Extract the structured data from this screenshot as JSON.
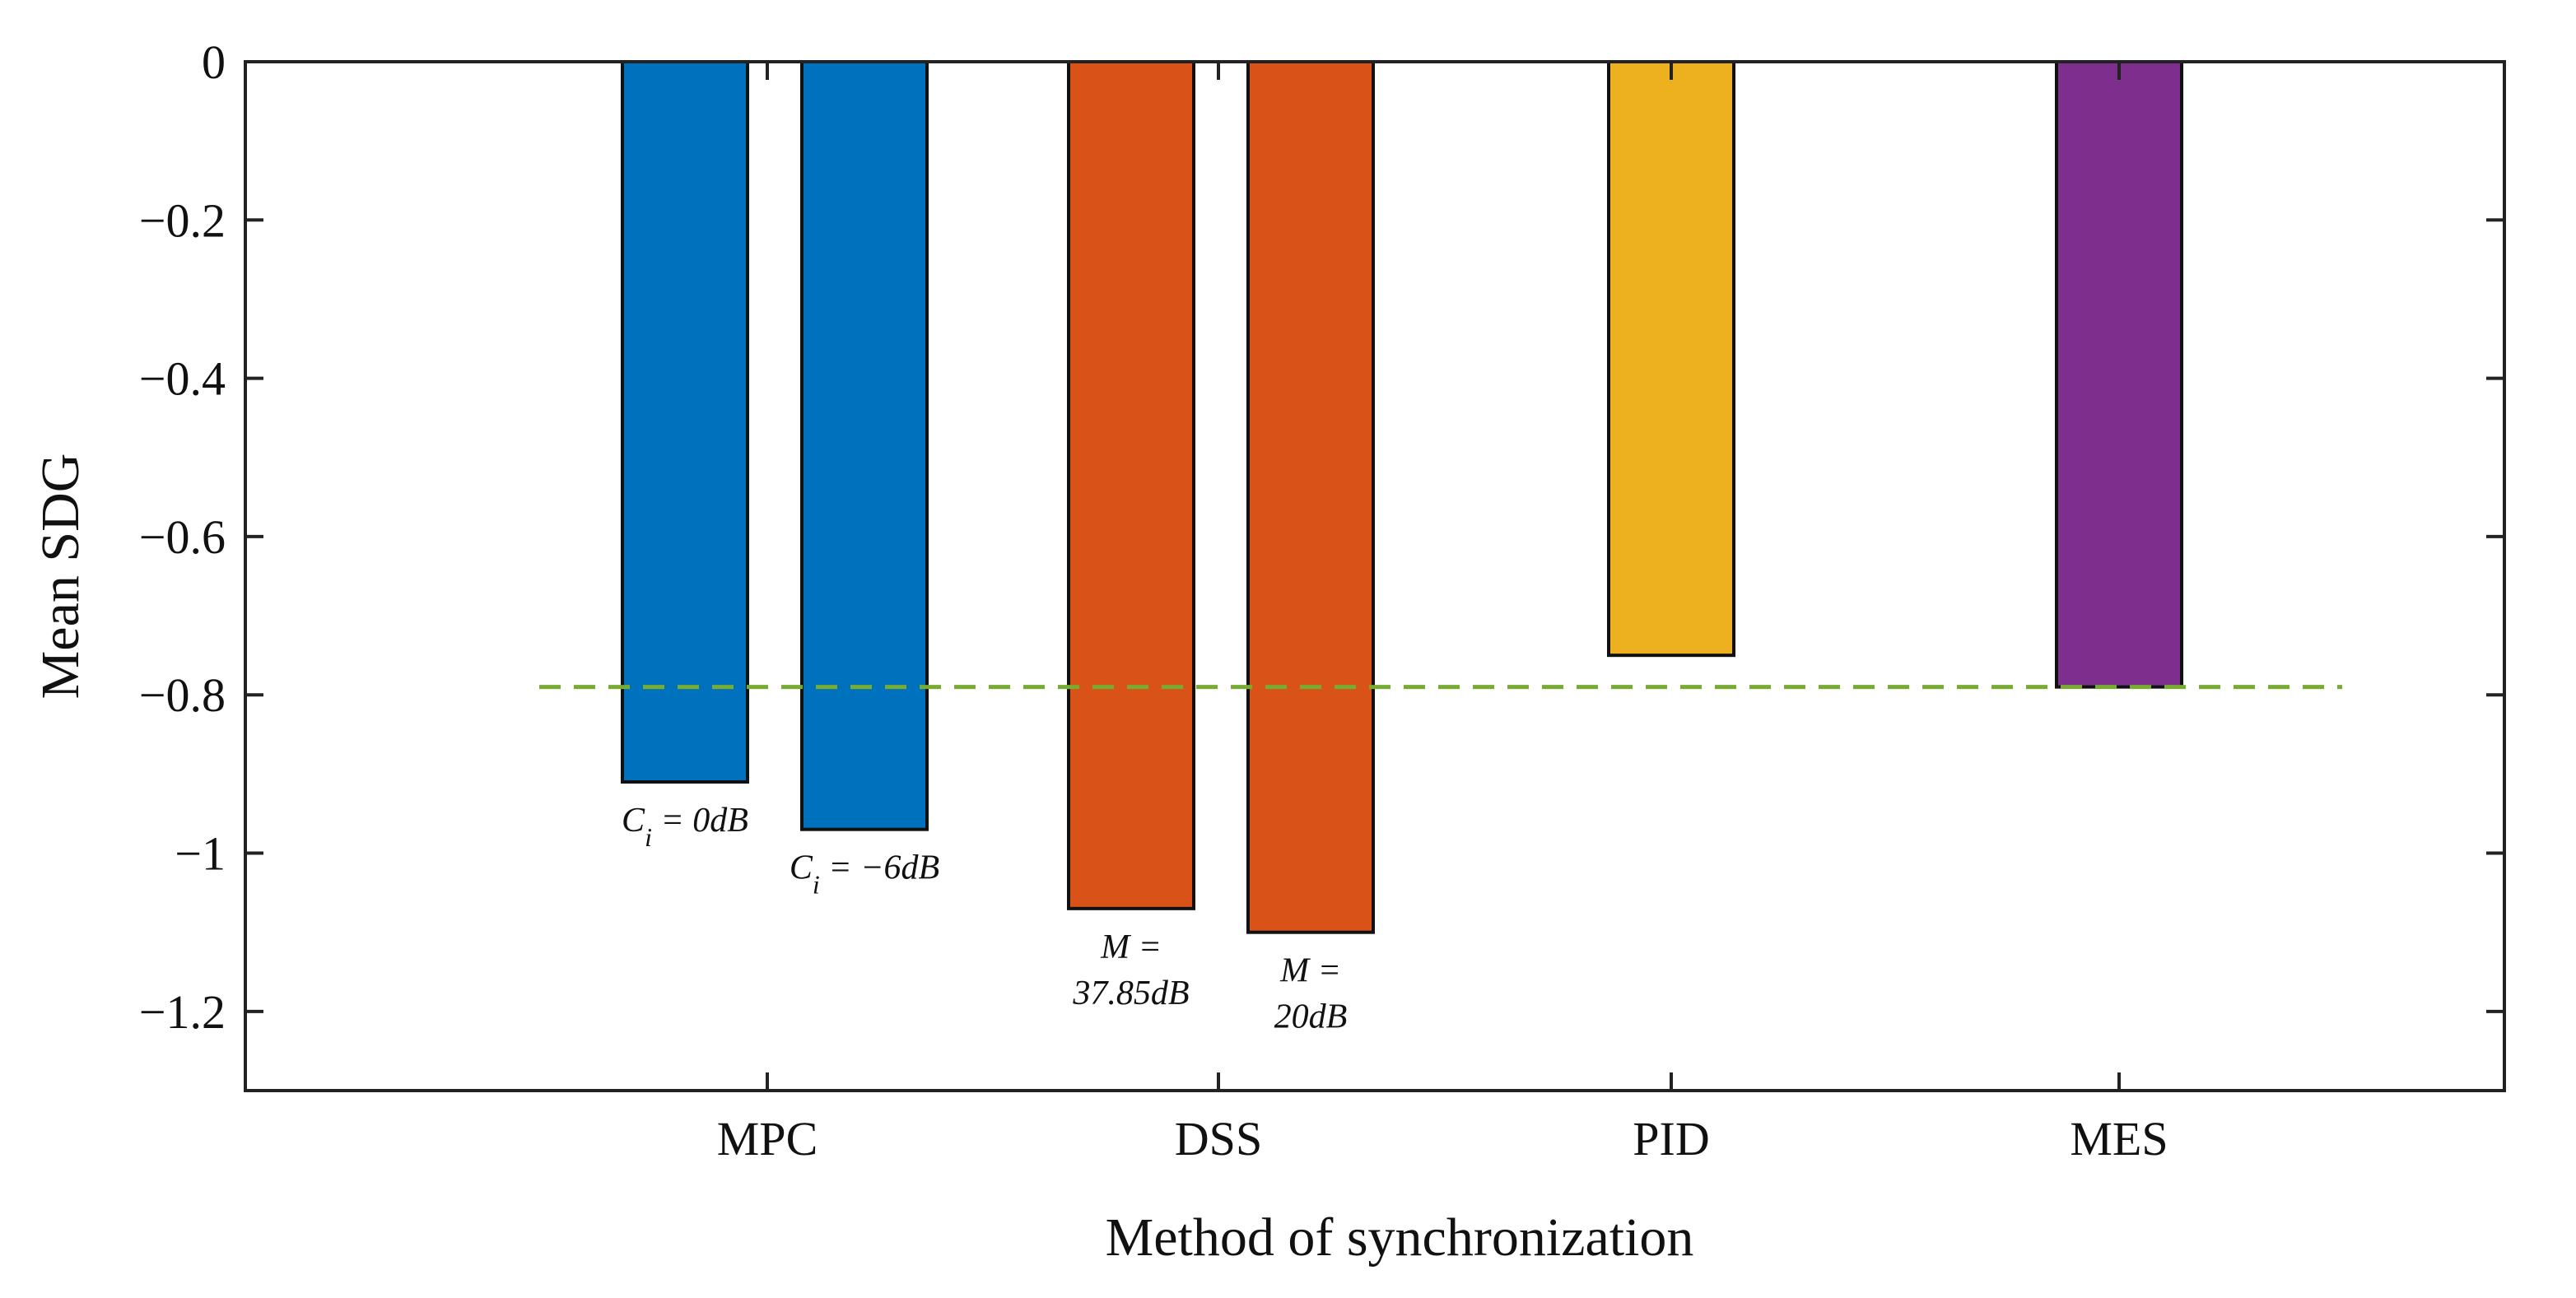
{
  "chart_data": {
    "type": "bar",
    "xlabel": "Method of synchronization",
    "ylabel": "Mean SDG",
    "ylim": [
      -1.3,
      0
    ],
    "yticks": [
      0,
      -0.2,
      -0.4,
      -0.6,
      -0.8,
      -1,
      -1.2
    ],
    "ytick_labels": [
      "0",
      "−0.2",
      "−0.4",
      "−0.6",
      "−0.8",
      "−1",
      "−1.2"
    ],
    "grid": false,
    "legend": "none",
    "categories": [
      "MPC",
      "DSS",
      "PID",
      "MES"
    ],
    "bars": [
      {
        "category": "MPC",
        "value": -0.91,
        "color": "#0072BD",
        "label_lines": [
          {
            "main": "C",
            "sub": "i",
            "rest": " = 0dB"
          }
        ]
      },
      {
        "category": "MPC",
        "value": -0.97,
        "color": "#0072BD",
        "label_lines": [
          {
            "main": "C",
            "sub": "i",
            "rest": " = −6dB"
          }
        ]
      },
      {
        "category": "DSS",
        "value": -1.07,
        "color": "#D95319",
        "label_lines": [
          {
            "main": "M =",
            "sub": "",
            "rest": ""
          },
          {
            "main": "37.85dB",
            "sub": "",
            "rest": ""
          }
        ]
      },
      {
        "category": "DSS",
        "value": -1.1,
        "color": "#D95319",
        "label_lines": [
          {
            "main": "M =",
            "sub": "",
            "rest": ""
          },
          {
            "main": "20dB",
            "sub": "",
            "rest": ""
          }
        ]
      },
      {
        "category": "PID",
        "value": -0.75,
        "color": "#EDB120",
        "label_lines": []
      },
      {
        "category": "MES",
        "value": -0.79,
        "color": "#7E2F8E",
        "label_lines": []
      }
    ],
    "reference_line": {
      "value": -0.79,
      "style": "dashed",
      "color": "#77AC30"
    }
  }
}
